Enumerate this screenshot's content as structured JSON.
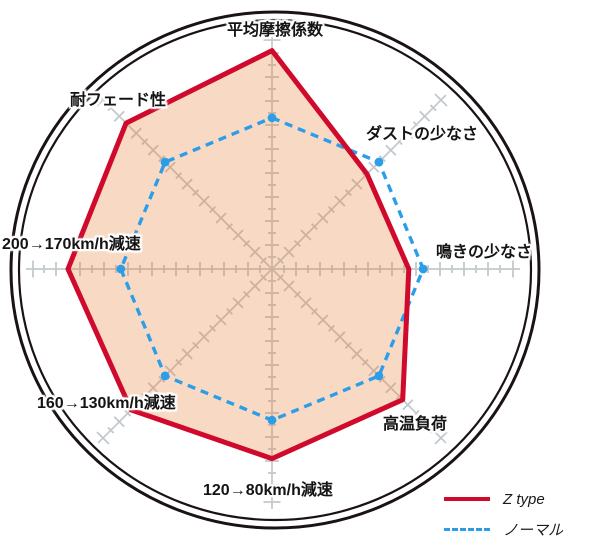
{
  "chart_data": {
    "type": "radar",
    "title": "",
    "axes": [
      {
        "label": "平均摩擦係数",
        "direction": "top"
      },
      {
        "label": "ダストの少なさ",
        "direction": "upper-right"
      },
      {
        "label": "鳴きの少なさ",
        "direction": "right"
      },
      {
        "label": "高温負荷",
        "direction": "lower-right"
      },
      {
        "label": "120→80km/h減速",
        "direction": "bottom"
      },
      {
        "label": "160→130km/h減速",
        "direction": "lower-left"
      },
      {
        "label": "200→170km/h減速",
        "direction": "left"
      },
      {
        "label": "耐フェード性",
        "direction": "upper-left"
      }
    ],
    "scale": {
      "min": 0,
      "max": 10,
      "major_tick": 1,
      "minor_tick": 0.5
    },
    "series": [
      {
        "name": "Z type",
        "line_style": "solid",
        "color": "#cf0a2c",
        "fill_color": "#e78039",
        "fill_opacity": 0.3,
        "values": [
          9.1,
          5.6,
          5.7,
          7.7,
          7.9,
          8.3,
          8.5,
          8.6
        ]
      },
      {
        "name": "ノーマル",
        "line_style": "dashed",
        "color": "#2b9de9",
        "fill_color": "none",
        "fill_opacity": 0,
        "values": [
          6.3,
          6.3,
          6.3,
          6.3,
          6.3,
          6.3,
          6.3,
          6.3
        ]
      }
    ],
    "grid": {
      "color": "#c3c8cc",
      "ring_color": "#1b1214",
      "grid_on": true
    },
    "legend_position": "bottom-right"
  }
}
